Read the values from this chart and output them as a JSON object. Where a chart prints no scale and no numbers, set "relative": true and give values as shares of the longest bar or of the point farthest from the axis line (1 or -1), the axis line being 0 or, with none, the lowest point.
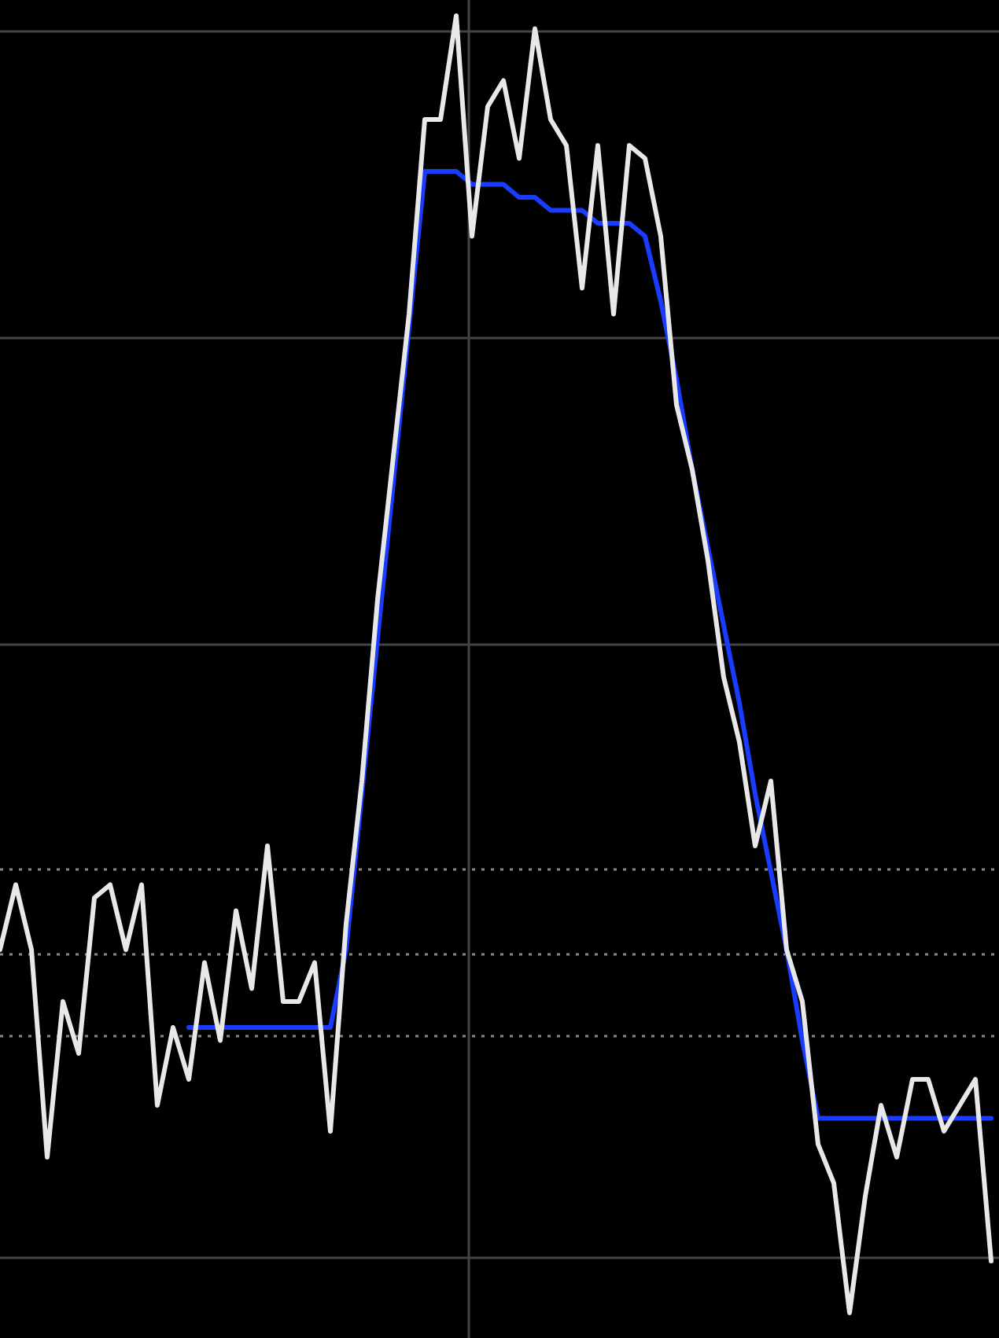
{
  "chart_data": {
    "type": "line",
    "relative": true,
    "categories": [
      null,
      null,
      null,
      null,
      null,
      null,
      null,
      null,
      null,
      null,
      null,
      null,
      null,
      null,
      null,
      null,
      null,
      null,
      null,
      null,
      null,
      null,
      null,
      null,
      null,
      null,
      null,
      null,
      null,
      null,
      null,
      null,
      null,
      null,
      null,
      null,
      null,
      null,
      null,
      null,
      null,
      null,
      null,
      null,
      null,
      null,
      null,
      null,
      null,
      null,
      null,
      null,
      null,
      null,
      null,
      null,
      null,
      null,
      null,
      null,
      null,
      null,
      null,
      null
    ],
    "series": [
      {
        "color": "#1a3cff",
        "values": [
          null,
          null,
          null,
          null,
          null,
          null,
          null,
          null,
          null,
          null,
          null,
          null,
          0.22,
          0.22,
          0.22,
          0.22,
          0.22,
          0.22,
          0.22,
          0.22,
          0.22,
          0.22,
          0.28,
          0.4,
          0.52,
          0.64,
          0.76,
          0.88,
          0.88,
          0.88,
          0.87,
          0.87,
          0.87,
          0.86,
          0.86,
          0.85,
          0.85,
          0.85,
          0.84,
          0.84,
          0.84,
          0.83,
          0.78,
          0.72,
          0.65,
          0.59,
          0.53,
          0.47,
          0.4,
          0.34,
          0.28,
          0.21,
          0.15,
          0.15,
          0.15,
          0.15,
          0.15,
          0.15,
          0.15,
          0.15,
          0.15,
          0.15,
          0.15,
          0.15
        ]
      },
      {
        "color": "#e8e8e8",
        "values": [
          0.28,
          0.33,
          0.28,
          0.12,
          0.24,
          0.2,
          0.32,
          0.33,
          0.28,
          0.33,
          0.16,
          0.22,
          0.18,
          0.27,
          0.21,
          0.31,
          0.25,
          0.36,
          0.24,
          0.24,
          0.27,
          0.14,
          0.3,
          0.41,
          0.55,
          0.66,
          0.77,
          0.92,
          0.92,
          1,
          0.83,
          0.93,
          0.95,
          0.89,
          0.99,
          0.92,
          0.9,
          0.79,
          0.9,
          0.77,
          0.9,
          0.89,
          0.83,
          0.7,
          0.65,
          0.58,
          0.49,
          0.44,
          0.36,
          0.41,
          0.28,
          0.24,
          0.13,
          0.1,
          0,
          0.09,
          0.16,
          0.12,
          0.18,
          0.18,
          0.14,
          0.16,
          0.18,
          0.04
        ]
      }
    ]
  }
}
